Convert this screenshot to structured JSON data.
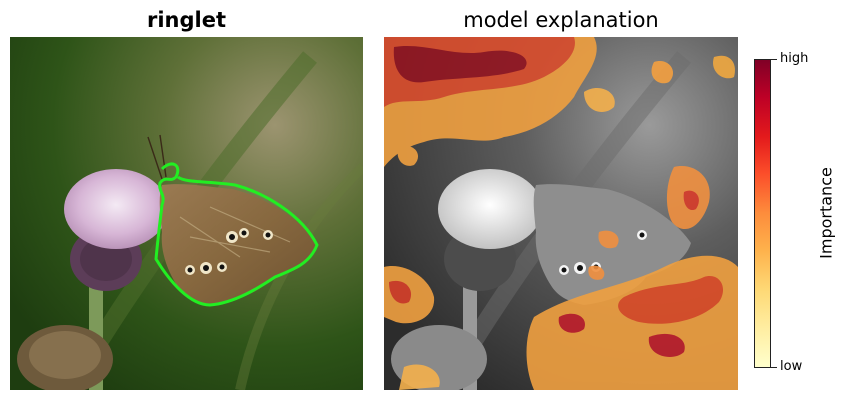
{
  "left_panel": {
    "title": "ringlet"
  },
  "right_panel": {
    "title": "model explanation"
  },
  "colorbar": {
    "label": "Importance",
    "high_label": "high",
    "low_label": "low",
    "colors": [
      "#ffffcc",
      "#ffeda0",
      "#fed976",
      "#feb24c",
      "#fd8d3c",
      "#fc4e2a",
      "#e31a1c",
      "#bd0026",
      "#800026"
    ]
  },
  "outline_color": "#22ee22"
}
